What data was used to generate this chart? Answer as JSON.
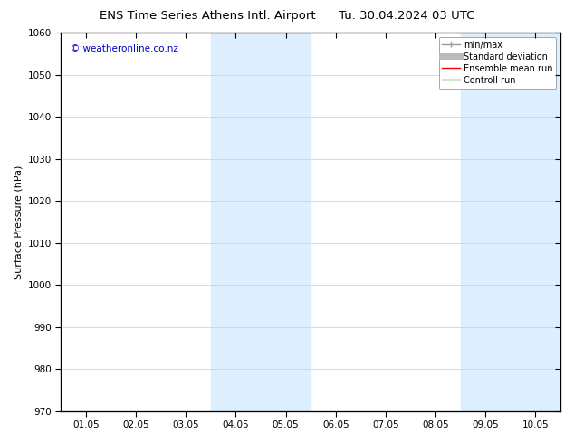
{
  "title_left": "ENS Time Series Athens Intl. Airport",
  "title_right": "Tu. 30.04.2024 03 UTC",
  "ylabel": "Surface Pressure (hPa)",
  "ylim": [
    970,
    1060
  ],
  "yticks": [
    970,
    980,
    990,
    1000,
    1010,
    1020,
    1030,
    1040,
    1050,
    1060
  ],
  "xtick_labels": [
    "01.05",
    "02.05",
    "03.05",
    "04.05",
    "05.05",
    "06.05",
    "07.05",
    "08.05",
    "09.05",
    "10.05"
  ],
  "shaded_regions": [
    {
      "xmin": 3,
      "xmax": 5,
      "color": "#ddeeff"
    },
    {
      "xmin": 8,
      "xmax": 10,
      "color": "#ddeeff"
    }
  ],
  "watermark": "© weatheronline.co.nz",
  "watermark_color": "#0000cc",
  "background_color": "#ffffff",
  "legend_items": [
    {
      "label": "min/max",
      "color": "#999999",
      "linestyle": "-",
      "linewidth": 1.0
    },
    {
      "label": "Standard deviation",
      "color": "#bbbbbb",
      "linestyle": "-",
      "linewidth": 5
    },
    {
      "label": "Ensemble mean run",
      "color": "#ff0000",
      "linestyle": "-",
      "linewidth": 1.0
    },
    {
      "label": "Controll run",
      "color": "#008800",
      "linestyle": "-",
      "linewidth": 1.0
    }
  ],
  "title_fontsize": 9.5,
  "tick_fontsize": 7.5,
  "ylabel_fontsize": 8,
  "watermark_fontsize": 7.5,
  "legend_fontsize": 7
}
